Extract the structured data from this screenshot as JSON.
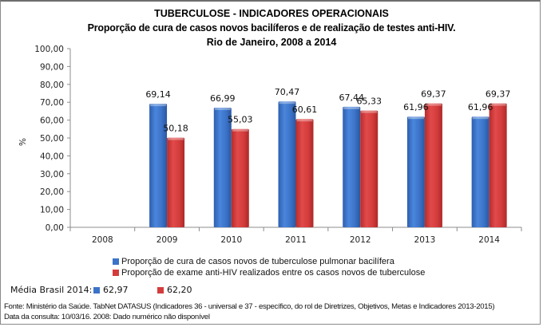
{
  "chart_data": {
    "type": "bar",
    "title": "TUBERCULOSE - INDICADORES OPERACIONAIS",
    "subtitle": "Proporção de cura de casos novos bacilíferos e de realização de testes anti-HIV.",
    "subtitle2": "Rio de Janeiro, 2008 a 2014",
    "xlabel": "",
    "ylabel": "%",
    "ylim": [
      0,
      100
    ],
    "yticks": [
      "0,00",
      "10,00",
      "20,00",
      "30,00",
      "40,00",
      "50,00",
      "60,00",
      "70,00",
      "80,00",
      "90,00",
      "100,00"
    ],
    "ytick_values": [
      0,
      10,
      20,
      30,
      40,
      50,
      60,
      70,
      80,
      90,
      100
    ],
    "grid": false,
    "categories": [
      "2008",
      "2009",
      "2010",
      "2011",
      "2012",
      "2013",
      "2014"
    ],
    "series": [
      {
        "name": "Proporção de cura de casos novos de tuberculose pulmonar bacilífera",
        "color": "#3b73c8",
        "values": [
          null,
          69.14,
          66.99,
          70.47,
          67.44,
          61.96,
          61.96
        ],
        "labels": [
          "",
          "69,14",
          "66,99",
          "70,47",
          "67,44",
          "61,96",
          "61,96"
        ]
      },
      {
        "name": "Proporção de exame anti-HIV realizados entre os casos novos de tuberculose",
        "color": "#d43c3c",
        "values": [
          null,
          50.18,
          55.03,
          60.61,
          65.33,
          69.37,
          69.37
        ],
        "labels": [
          "",
          "50,18",
          "55,03",
          "60,61",
          "65,33",
          "69,37",
          "69,37"
        ]
      }
    ],
    "legend_position": "bottom"
  },
  "media_brasil": {
    "label": "Média Brasil 2014:",
    "value1": "62,97",
    "value2": "62,20",
    "color1": "#3b73c8",
    "color2": "#d43c3c"
  },
  "footer": {
    "source": "Fonte: Ministério da Saúde. TabNet DATASUS (Indicadores 36 - universal e 37 - específico, do rol de Diretrizes, Objetivos, Metas e Indicadores 2013-2015)",
    "date": "Data da consulta: 10/03/16. 2008: Dado numérico não disponível"
  }
}
